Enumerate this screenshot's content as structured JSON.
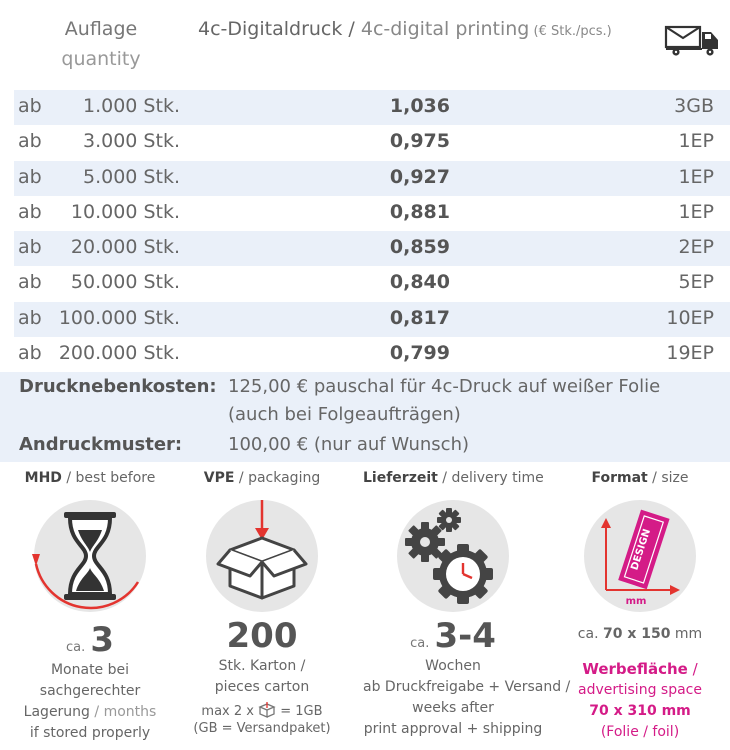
{
  "header": {
    "qty_de": "Auflage",
    "qty_en": "quantity",
    "price_de": "4c-Digitaldruck",
    "price_sep": " / ",
    "price_en": "4c-digital printing",
    "price_unit": " (€ Stk./pcs.)",
    "shipping_icon": "envelope-truck-icon"
  },
  "rows": [
    {
      "prefix": "ab",
      "qty": "1.000 Stk.",
      "price": "1,036",
      "ship": "3GB"
    },
    {
      "prefix": "ab",
      "qty": "3.000 Stk.",
      "price": "0,975",
      "ship": "1EP"
    },
    {
      "prefix": "ab",
      "qty": "5.000 Stk.",
      "price": "0,927",
      "ship": "1EP"
    },
    {
      "prefix": "ab",
      "qty": "10.000 Stk.",
      "price": "0,881",
      "ship": "1EP"
    },
    {
      "prefix": "ab",
      "qty": "20.000 Stk.",
      "price": "0,859",
      "ship": "2EP"
    },
    {
      "prefix": "ab",
      "qty": "50.000 Stk.",
      "price": "0,840",
      "ship": "5EP"
    },
    {
      "prefix": "ab",
      "qty": "100.000 Stk.",
      "price": "0,817",
      "ship": "10EP"
    },
    {
      "prefix": "ab",
      "qty": "200.000 Stk.",
      "price": "0,799",
      "ship": "19EP"
    }
  ],
  "costs": {
    "setup_label": "Drucknebenkosten:",
    "setup_line1": "125,00 € pauschal für 4c-Druck auf weißer Folie",
    "setup_line2": "(auch bei Folgeaufträgen)",
    "proof_label": "Andruckmuster:",
    "proof_text": "100,00 € (nur auf Wunsch)"
  },
  "mhd": {
    "title_de": "MHD",
    "title_en": "best before",
    "icon": "hourglass-icon",
    "ca": "ca.",
    "value": "3",
    "line1": "Monate bei",
    "line2": "sachgerechter",
    "line3_de": "Lagerung",
    "line3_en": "months",
    "line4": "if stored properly"
  },
  "vpe": {
    "title_de": "VPE",
    "title_en": "packaging",
    "icon": "box-icon",
    "value": "200",
    "line1": "Stk. Karton /",
    "line2": "pieces carton",
    "note_a": "max 2 x",
    "note_b": "= 1GB",
    "note_icon": "small-box-icon",
    "note2": "(GB = Versandpaket)"
  },
  "delivery": {
    "title_de": "Lieferzeit",
    "title_en": "delivery time",
    "icon": "gears-clock-icon",
    "ca": "ca.",
    "value": "3-4",
    "line1": "Wochen",
    "line2": "ab Druckfreigabe + Versand /",
    "line3": "weeks after",
    "line4": "print approval + shipping"
  },
  "format": {
    "title_de": "Format",
    "title_en": "size",
    "icon": "design-label-icon",
    "design_text": "DESIGN",
    "mm_text": "mm",
    "ca": "ca.",
    "size": "70 x 150",
    "size_unit": "mm",
    "ad_de": "Werbefläche",
    "ad_en": "advertising space",
    "ad_size": "70 x 310 mm",
    "ad_note": "(Folie / foil)"
  },
  "colors": {
    "row_shade": "#eaf0f9",
    "icon_circle": "#e6e6e6",
    "accent_red": "#e3342f",
    "accent_magenta": "#d41b87"
  }
}
